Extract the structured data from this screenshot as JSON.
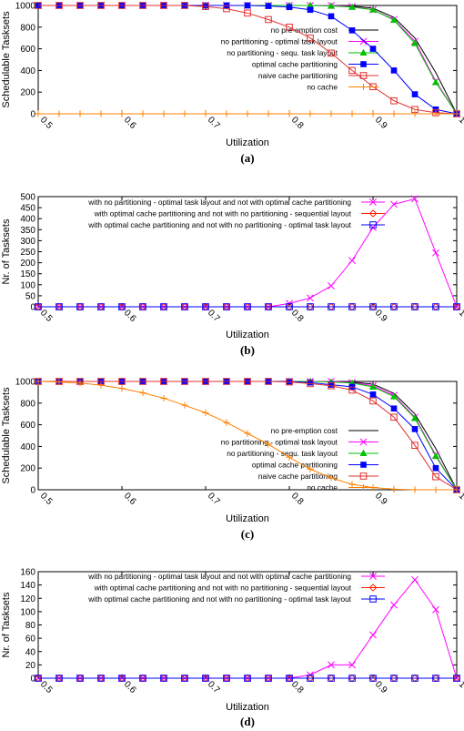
{
  "colors": {
    "no_preemption": "#000000",
    "optimal_task_layout": "#ff00ff",
    "sequ_task_layout": "#00c000",
    "optimal_cache": "#0000ff",
    "naive_cache": "#e03030",
    "no_cache": "#ff8000",
    "diff_seq": "#ff2000"
  },
  "chart_data": [
    {
      "type": "line",
      "caption": "(a)",
      "xlabel": "Utilization",
      "ylabel": "Schedulable Tasksets",
      "xlim": [
        0.5,
        1.0
      ],
      "ylim": [
        0,
        1000
      ],
      "xticks": [
        "0.5",
        "0.6",
        "0.7",
        "0.8",
        "0.9",
        "1"
      ],
      "xtick_values": [
        0.5,
        0.6,
        0.7,
        0.8,
        0.9,
        1.0
      ],
      "yticks": [
        "0",
        "200",
        "400",
        "600",
        "800",
        "1000"
      ],
      "ytick_values": [
        0,
        200,
        400,
        600,
        800,
        1000
      ],
      "legend_position": "right",
      "x": [
        0.5,
        0.525,
        0.55,
        0.575,
        0.6,
        0.625,
        0.65,
        0.675,
        0.7,
        0.725,
        0.75,
        0.775,
        0.8,
        0.825,
        0.85,
        0.875,
        0.9,
        0.925,
        0.95,
        0.975,
        1.0
      ],
      "series": [
        {
          "name": "no pre-emption cost",
          "color": "no_preemption",
          "marker": "none",
          "values": [
            1000,
            1000,
            1000,
            1000,
            1000,
            1000,
            1000,
            1000,
            1000,
            1000,
            1000,
            1000,
            1000,
            1000,
            1000,
            995,
            975,
            890,
            700,
            380,
            0
          ]
        },
        {
          "name": "no partitioning - optimal task layout",
          "color": "optimal_task_layout",
          "marker": "x",
          "values": [
            1000,
            1000,
            1000,
            1000,
            1000,
            1000,
            1000,
            1000,
            1000,
            1000,
            1000,
            1000,
            1000,
            1000,
            1000,
            990,
            960,
            870,
            670,
            300,
            0
          ]
        },
        {
          "name": "no partitioning - sequ. task layout",
          "color": "sequ_task_layout",
          "marker": "triangle",
          "values": [
            1000,
            1000,
            1000,
            1000,
            1000,
            1000,
            1000,
            1000,
            1000,
            1000,
            1000,
            1000,
            1000,
            1000,
            995,
            985,
            960,
            865,
            650,
            290,
            0
          ]
        },
        {
          "name": "optimal cache partitioning",
          "color": "optimal_cache",
          "marker": "square",
          "values": [
            1000,
            1000,
            1000,
            1000,
            1000,
            1000,
            1000,
            1000,
            1000,
            1000,
            1000,
            995,
            985,
            960,
            900,
            770,
            600,
            400,
            180,
            40,
            0
          ]
        },
        {
          "name": "naive cache partitioning",
          "color": "naive_cache",
          "marker": "open-square",
          "values": [
            1000,
            1000,
            1000,
            1000,
            1000,
            1000,
            1000,
            1000,
            990,
            970,
            930,
            870,
            800,
            700,
            560,
            400,
            250,
            120,
            40,
            10,
            0
          ]
        },
        {
          "name": "no cache",
          "color": "no_cache",
          "marker": "plus",
          "values": [
            0,
            0,
            0,
            0,
            0,
            0,
            0,
            0,
            0,
            0,
            0,
            0,
            0,
            0,
            0,
            0,
            0,
            0,
            0,
            0,
            0
          ]
        }
      ]
    },
    {
      "type": "line",
      "caption": "(b)",
      "xlabel": "Utilization",
      "ylabel": "Nr. of Tasksets",
      "xlim": [
        0.5,
        1.0
      ],
      "ylim": [
        0,
        500
      ],
      "xticks": [
        "0.5",
        "0.6",
        "0.7",
        "0.8",
        "0.9",
        "1"
      ],
      "xtick_values": [
        0.5,
        0.6,
        0.7,
        0.8,
        0.9,
        1.0
      ],
      "yticks": [
        "0",
        "50",
        "100",
        "150",
        "200",
        "250",
        "300",
        "350",
        "400",
        "450",
        "500"
      ],
      "ytick_values": [
        0,
        50,
        100,
        150,
        200,
        250,
        300,
        350,
        400,
        450,
        500
      ],
      "legend_position": "top-right",
      "x": [
        0.5,
        0.525,
        0.55,
        0.575,
        0.6,
        0.625,
        0.65,
        0.675,
        0.7,
        0.725,
        0.75,
        0.775,
        0.8,
        0.825,
        0.85,
        0.875,
        0.9,
        0.925,
        0.95,
        0.975,
        1.0
      ],
      "series": [
        {
          "name": "with no partitioning - optimal task layout and not with optimal cache partitioning",
          "color": "optimal_task_layout",
          "marker": "x",
          "values": [
            0,
            0,
            0,
            0,
            0,
            0,
            0,
            0,
            0,
            0,
            0,
            0,
            15,
            40,
            95,
            210,
            360,
            465,
            490,
            245,
            0
          ]
        },
        {
          "name": "with optimal cache partitioning and not with no partitioning - sequential layout",
          "color": "diff_seq",
          "marker": "diamond",
          "values": [
            0,
            0,
            0,
            0,
            0,
            0,
            0,
            0,
            0,
            0,
            0,
            0,
            0,
            0,
            0,
            0,
            0,
            0,
            0,
            0,
            0
          ]
        },
        {
          "name": "with optimal cache partitioning and not with no partitioning - optimal task layout",
          "color": "optimal_cache",
          "marker": "open-square",
          "values": [
            0,
            0,
            0,
            0,
            0,
            0,
            0,
            0,
            0,
            0,
            0,
            0,
            0,
            0,
            0,
            0,
            0,
            0,
            0,
            0,
            0
          ]
        }
      ]
    },
    {
      "type": "line",
      "caption": "(c)",
      "xlabel": "Utilization",
      "ylabel": "Schedulable Tasksets",
      "xlim": [
        0.5,
        1.0
      ],
      "ylim": [
        0,
        1000
      ],
      "xticks": [
        "0.5",
        "0.6",
        "0.7",
        "0.8",
        "0.9",
        "1"
      ],
      "xtick_values": [
        0.5,
        0.6,
        0.7,
        0.8,
        0.9,
        1.0
      ],
      "yticks": [
        "0",
        "200",
        "400",
        "600",
        "800",
        "1000"
      ],
      "ytick_values": [
        0,
        200,
        400,
        600,
        800,
        1000
      ],
      "legend_position": "right",
      "x": [
        0.5,
        0.525,
        0.55,
        0.575,
        0.6,
        0.625,
        0.65,
        0.675,
        0.7,
        0.725,
        0.75,
        0.775,
        0.8,
        0.825,
        0.85,
        0.875,
        0.9,
        0.925,
        0.95,
        0.975,
        1.0
      ],
      "series": [
        {
          "name": "no pre-emption cost",
          "color": "no_preemption",
          "marker": "none",
          "values": [
            1000,
            1000,
            1000,
            1000,
            1000,
            1000,
            1000,
            1000,
            1000,
            1000,
            1000,
            1000,
            1000,
            1000,
            1000,
            995,
            975,
            890,
            700,
            380,
            0
          ]
        },
        {
          "name": "no partitioning - optimal task layout",
          "color": "optimal_task_layout",
          "marker": "x",
          "values": [
            1000,
            1000,
            1000,
            1000,
            1000,
            1000,
            1000,
            1000,
            1000,
            1000,
            1000,
            1000,
            1000,
            1000,
            1000,
            990,
            960,
            870,
            670,
            320,
            0
          ]
        },
        {
          "name": "no partitioning - sequ. task layout",
          "color": "sequ_task_layout",
          "marker": "triangle",
          "values": [
            1000,
            1000,
            1000,
            1000,
            1000,
            1000,
            1000,
            1000,
            1000,
            1000,
            1000,
            1000,
            1000,
            1000,
            995,
            985,
            950,
            860,
            660,
            310,
            0
          ]
        },
        {
          "name": "optimal cache partitioning",
          "color": "optimal_cache",
          "marker": "square",
          "values": [
            1000,
            1000,
            1000,
            1000,
            1000,
            1000,
            1000,
            1000,
            1000,
            1000,
            1000,
            1000,
            1000,
            990,
            970,
            950,
            880,
            750,
            560,
            200,
            0
          ]
        },
        {
          "name": "naive cache partitioning",
          "color": "naive_cache",
          "marker": "open-square",
          "values": [
            1000,
            1000,
            1000,
            1000,
            1000,
            1000,
            1000,
            1000,
            1000,
            1000,
            1000,
            1000,
            995,
            980,
            960,
            920,
            820,
            670,
            410,
            120,
            0
          ]
        },
        {
          "name": "no cache",
          "color": "no_cache",
          "marker": "plus",
          "values": [
            1000,
            995,
            985,
            965,
            935,
            895,
            845,
            780,
            710,
            620,
            520,
            420,
            300,
            190,
            110,
            50,
            20,
            5,
            0,
            0,
            0
          ]
        }
      ]
    },
    {
      "type": "line",
      "caption": "(d)",
      "xlabel": "Utilization",
      "ylabel": "Nr. of Tasksets",
      "xlim": [
        0.5,
        1.0
      ],
      "ylim": [
        0,
        160
      ],
      "xticks": [
        "0.5",
        "0.6",
        "0.7",
        "0.8",
        "0.9",
        "1"
      ],
      "xtick_values": [
        0.5,
        0.6,
        0.7,
        0.8,
        0.9,
        1.0
      ],
      "yticks": [
        "0",
        "20",
        "40",
        "60",
        "80",
        "100",
        "120",
        "140",
        "160"
      ],
      "ytick_values": [
        0,
        20,
        40,
        60,
        80,
        100,
        120,
        140,
        160
      ],
      "legend_position": "top-right",
      "x": [
        0.5,
        0.525,
        0.55,
        0.575,
        0.6,
        0.625,
        0.65,
        0.675,
        0.7,
        0.725,
        0.75,
        0.775,
        0.8,
        0.825,
        0.85,
        0.875,
        0.9,
        0.925,
        0.95,
        0.975,
        1.0
      ],
      "series": [
        {
          "name": "with no partitioning - optimal task layout and not with optimal cache partitioning",
          "color": "optimal_task_layout",
          "marker": "x",
          "values": [
            0,
            0,
            0,
            0,
            0,
            0,
            0,
            0,
            0,
            0,
            0,
            0,
            0,
            5,
            20,
            20,
            65,
            110,
            148,
            103,
            0
          ]
        },
        {
          "name": "with optimal cache partitioning and not with no partitioning - sequential layout",
          "color": "diff_seq",
          "marker": "diamond",
          "values": [
            0,
            0,
            0,
            0,
            0,
            0,
            0,
            0,
            0,
            0,
            0,
            0,
            0,
            0,
            0,
            0,
            0,
            0,
            0,
            0,
            0
          ]
        },
        {
          "name": "with optimal cache partitioning and not with no partitioning - optimal task layout",
          "color": "optimal_cache",
          "marker": "open-square",
          "values": [
            0,
            0,
            0,
            0,
            0,
            0,
            0,
            0,
            0,
            0,
            0,
            0,
            0,
            0,
            0,
            0,
            0,
            0,
            0,
            0,
            0
          ]
        }
      ]
    }
  ]
}
